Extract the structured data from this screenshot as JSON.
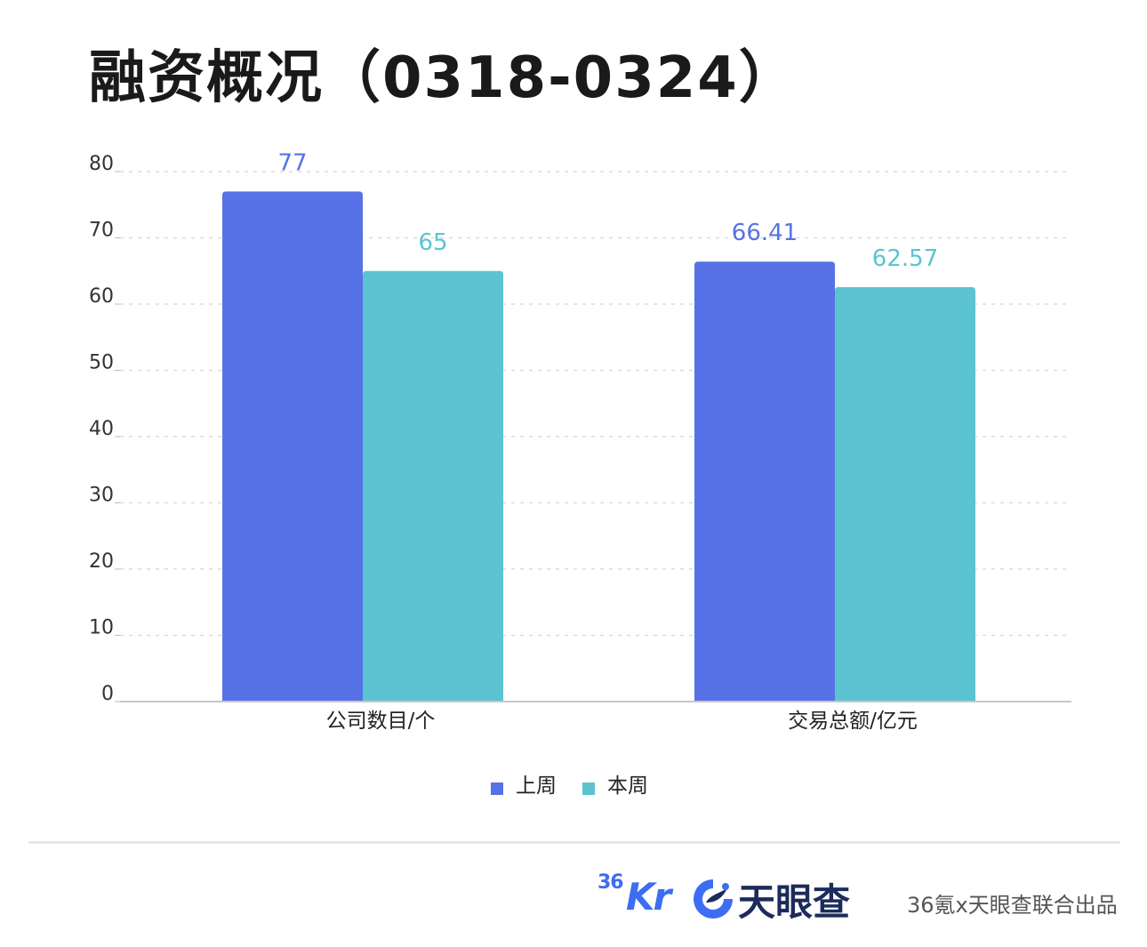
{
  "title": "融资概况（0318-0324）",
  "chart_data": {
    "type": "bar",
    "categories": [
      "公司数目/个",
      "交易总额/亿元"
    ],
    "series": [
      {
        "name": "上周",
        "values": [
          77,
          66.41
        ],
        "color": "#5672e6"
      },
      {
        "name": "本周",
        "values": [
          65,
          62.57
        ],
        "color": "#5cc3d1"
      }
    ],
    "value_labels": [
      [
        "77",
        "66.41"
      ],
      [
        "65",
        "62.57"
      ]
    ],
    "ylim": [
      0,
      80
    ],
    "yticks": [
      0,
      10,
      20,
      30,
      40,
      50,
      60,
      70,
      80
    ],
    "grid": true,
    "legend_position": "bottom-center"
  },
  "footer": {
    "logo_36kr_sup": "36",
    "logo_36kr_main": "Kr",
    "logo_tianyancha": "天眼查",
    "credit": "36氪x天眼查联合出品"
  },
  "colors": {
    "series_last_week": "#5672e6",
    "series_this_week": "#5cc3d1",
    "brand_36kr": "#3d6df2",
    "brand_tianyancha": "#1c2b5a"
  },
  "icons": {
    "tianyancha_logo": "tianyancha-swirl-icon"
  }
}
